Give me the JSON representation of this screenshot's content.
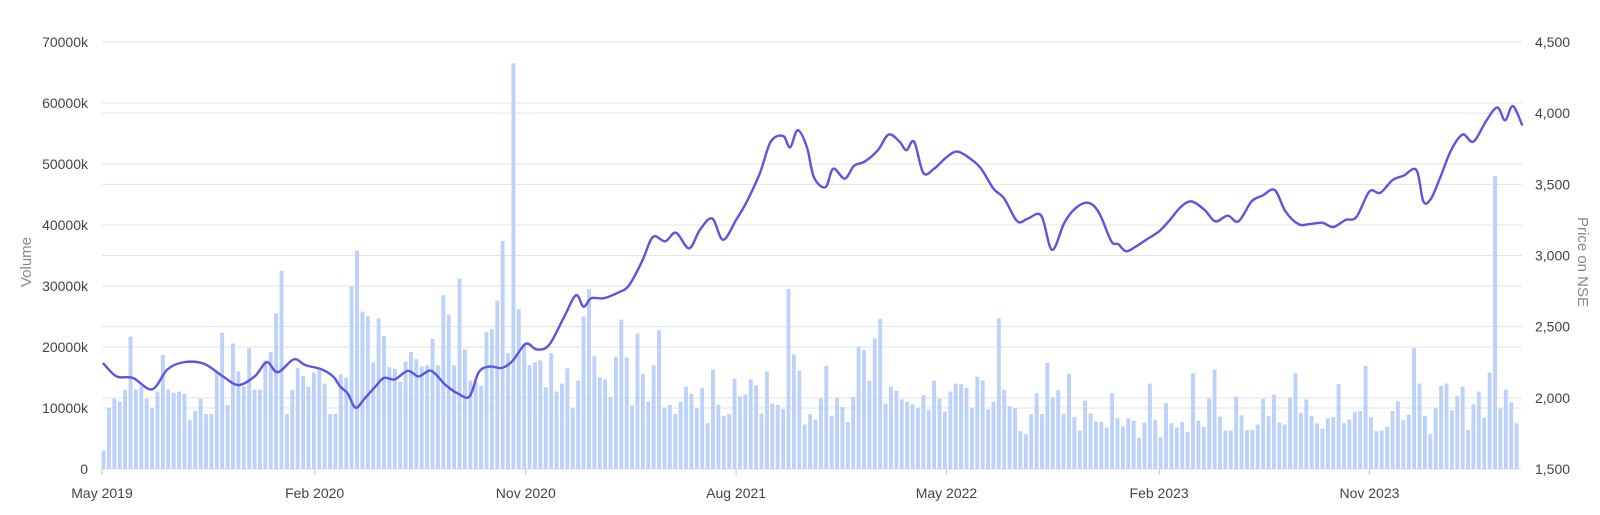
{
  "chart_data": {
    "type": "bar+line",
    "title": "",
    "ylabel_left": "Volume",
    "ylabel_right": "Price on NSE",
    "ylim_left": [
      0,
      70000
    ],
    "ylim_right": [
      1500,
      4500
    ],
    "left_ticks": [
      {
        "value": 0,
        "label": "0"
      },
      {
        "value": 10000,
        "label": "10000k"
      },
      {
        "value": 20000,
        "label": "20000k"
      },
      {
        "value": 30000,
        "label": "30000k"
      },
      {
        "value": 40000,
        "label": "40000k"
      },
      {
        "value": 50000,
        "label": "50000k"
      },
      {
        "value": 60000,
        "label": "60000k"
      },
      {
        "value": 70000,
        "label": "70000k"
      }
    ],
    "right_ticks": [
      {
        "value": 1500,
        "label": "1,500"
      },
      {
        "value": 2000,
        "label": "2,000"
      },
      {
        "value": 2500,
        "label": "2,500"
      },
      {
        "value": 3000,
        "label": "3,000"
      },
      {
        "value": 3500,
        "label": "3,500"
      },
      {
        "value": 4000,
        "label": "4,000"
      },
      {
        "value": 4500,
        "label": "4,500"
      }
    ],
    "x_ticks": [
      {
        "date": "2019-05-01",
        "label": "May 2019"
      },
      {
        "date": "2020-02-01",
        "label": "Feb 2020"
      },
      {
        "date": "2020-11-01",
        "label": "Nov 2020"
      },
      {
        "date": "2021-08-01",
        "label": "Aug 2021"
      },
      {
        "date": "2022-05-01",
        "label": "May 2022"
      },
      {
        "date": "2023-02-01",
        "label": "Feb 2023"
      },
      {
        "date": "2023-11-01",
        "label": "Nov 2023"
      }
    ],
    "x_range": [
      "2019-05-01",
      "2024-05-17"
    ],
    "grid": true,
    "volume_series": {
      "name": "Volume",
      "unit": "thousands",
      "color": "#bcd2fb",
      "start_date": "2019-05-03",
      "step_days": 7,
      "values": [
        3000,
        10000,
        11500,
        11000,
        13000,
        21700,
        13000,
        13500,
        11500,
        10000,
        12700,
        18700,
        13000,
        12500,
        12700,
        12300,
        8000,
        9500,
        11500,
        9000,
        9000,
        16000,
        22300,
        10500,
        20600,
        16000,
        13500,
        19800,
        13000,
        13000,
        17800,
        19200,
        25500,
        32500,
        9000,
        13000,
        16600,
        15200,
        13500,
        15800,
        16200,
        14000,
        9000,
        9000,
        15500,
        15000,
        29900,
        35800,
        25800,
        25000,
        17500,
        24700,
        21800,
        16700,
        16400,
        14300,
        17600,
        19200,
        18000,
        16800,
        17000,
        21300,
        17000,
        28500,
        25300,
        17000,
        31200,
        19600,
        14500,
        14300,
        13600,
        22500,
        22900,
        27600,
        37400,
        19000,
        66500,
        26200,
        20500,
        17000,
        17500,
        17800,
        13400,
        19000,
        12700,
        14000,
        16500,
        10000,
        14500,
        25000,
        29500,
        18500,
        15000,
        14700,
        11800,
        18400,
        24500,
        18300,
        10400,
        22200,
        15600,
        11000,
        17000,
        22800,
        10000,
        10500,
        9000,
        11000,
        13500,
        12300,
        10000,
        13300,
        7500,
        16300,
        10500,
        8700,
        9000,
        14800,
        11900,
        12200,
        14700,
        13700,
        9100,
        16000,
        10700,
        10500,
        9800,
        29500,
        18800,
        16100,
        7300,
        9000,
        8100,
        11600,
        16900,
        8700,
        11700,
        10200,
        7700,
        11800,
        20100,
        19500,
        14500,
        21400,
        24600,
        10700,
        13500,
        12800,
        11400,
        11000,
        10600,
        10000,
        12100,
        9700,
        14500,
        11500,
        9400,
        12700,
        14000,
        13900,
        13300,
        10000,
        15100,
        14500,
        9800,
        11000,
        24700,
        13000,
        10300,
        10000,
        6200,
        5700,
        9000,
        12400,
        9000,
        17400,
        11800,
        12900,
        9000,
        15600,
        8500,
        6300,
        11200,
        9100,
        7800,
        7700,
        6800,
        12400,
        8300,
        7000,
        8300,
        7900,
        5100,
        7600,
        14000,
        8100,
        5200,
        10800,
        7500,
        6800,
        7700,
        6100,
        15700,
        7900,
        6900,
        11600,
        16300,
        8600,
        6300,
        6300,
        11900,
        8800,
        6400,
        6400,
        7300,
        11500,
        8700,
        12200,
        7600,
        7300,
        11700,
        15700,
        9200,
        11400,
        8700,
        7500,
        6600,
        8300,
        8500,
        13900,
        7500,
        8100,
        9400,
        9500,
        16900,
        8500,
        6200,
        6300,
        6900,
        9500,
        11100,
        8000,
        8900,
        19800,
        14000,
        8700,
        5700,
        10000,
        13600,
        14000,
        9600,
        12000,
        13500,
        6400,
        10600,
        12700,
        8400,
        15800,
        48000,
        9900,
        13000,
        10900,
        7500
      ]
    },
    "price_series": {
      "name": "Price on NSE",
      "color": "#5b55e0",
      "points": [
        [
          "2019-05-03",
          2240
        ],
        [
          "2019-05-20",
          2150
        ],
        [
          "2019-06-10",
          2140
        ],
        [
          "2019-07-05",
          2060
        ],
        [
          "2019-07-25",
          2200
        ],
        [
          "2019-08-15",
          2250
        ],
        [
          "2019-09-10",
          2240
        ],
        [
          "2019-10-05",
          2150
        ],
        [
          "2019-10-25",
          2090
        ],
        [
          "2019-11-15",
          2150
        ],
        [
          "2019-12-01",
          2250
        ],
        [
          "2019-12-15",
          2180
        ],
        [
          "2020-01-05",
          2270
        ],
        [
          "2020-01-20",
          2230
        ],
        [
          "2020-02-10",
          2200
        ],
        [
          "2020-02-25",
          2150
        ],
        [
          "2020-03-05",
          2080
        ],
        [
          "2020-03-15",
          2030
        ],
        [
          "2020-03-25",
          1930
        ],
        [
          "2020-04-05",
          1990
        ],
        [
          "2020-04-20",
          2080
        ],
        [
          "2020-05-01",
          2140
        ],
        [
          "2020-05-15",
          2130
        ],
        [
          "2020-06-01",
          2190
        ],
        [
          "2020-06-15",
          2150
        ],
        [
          "2020-07-01",
          2190
        ],
        [
          "2020-07-20",
          2090
        ],
        [
          "2020-08-05",
          2030
        ],
        [
          "2020-08-20",
          2010
        ],
        [
          "2020-09-01",
          2180
        ],
        [
          "2020-09-15",
          2220
        ],
        [
          "2020-10-01",
          2210
        ],
        [
          "2020-10-15",
          2260
        ],
        [
          "2020-11-01",
          2380
        ],
        [
          "2020-11-15",
          2340
        ],
        [
          "2020-12-01",
          2370
        ],
        [
          "2020-12-20",
          2560
        ],
        [
          "2021-01-05",
          2720
        ],
        [
          "2021-01-15",
          2640
        ],
        [
          "2021-01-25",
          2700
        ],
        [
          "2021-02-10",
          2700
        ],
        [
          "2021-03-01",
          2740
        ],
        [
          "2021-03-15",
          2790
        ],
        [
          "2021-04-01",
          2960
        ],
        [
          "2021-04-15",
          3130
        ],
        [
          "2021-05-01",
          3100
        ],
        [
          "2021-05-15",
          3160
        ],
        [
          "2021-06-01",
          3050
        ],
        [
          "2021-06-15",
          3180
        ],
        [
          "2021-07-01",
          3260
        ],
        [
          "2021-07-15",
          3110
        ],
        [
          "2021-08-01",
          3250
        ],
        [
          "2021-08-15",
          3380
        ],
        [
          "2021-09-01",
          3580
        ],
        [
          "2021-09-15",
          3800
        ],
        [
          "2021-10-01",
          3840
        ],
        [
          "2021-10-10",
          3760
        ],
        [
          "2021-10-20",
          3880
        ],
        [
          "2021-11-01",
          3760
        ],
        [
          "2021-11-10",
          3550
        ],
        [
          "2021-11-25",
          3480
        ],
        [
          "2021-12-05",
          3610
        ],
        [
          "2021-12-20",
          3540
        ],
        [
          "2022-01-01",
          3630
        ],
        [
          "2022-01-15",
          3660
        ],
        [
          "2022-02-01",
          3740
        ],
        [
          "2022-02-15",
          3850
        ],
        [
          "2022-03-01",
          3800
        ],
        [
          "2022-03-10",
          3740
        ],
        [
          "2022-03-20",
          3800
        ],
        [
          "2022-04-01",
          3580
        ],
        [
          "2022-04-15",
          3610
        ],
        [
          "2022-05-01",
          3690
        ],
        [
          "2022-05-15",
          3730
        ],
        [
          "2022-06-01",
          3680
        ],
        [
          "2022-06-15",
          3610
        ],
        [
          "2022-07-01",
          3470
        ],
        [
          "2022-07-15",
          3400
        ],
        [
          "2022-08-01",
          3240
        ],
        [
          "2022-08-15",
          3260
        ],
        [
          "2022-09-01",
          3280
        ],
        [
          "2022-09-15",
          3040
        ],
        [
          "2022-10-01",
          3230
        ],
        [
          "2022-10-15",
          3330
        ],
        [
          "2022-11-01",
          3370
        ],
        [
          "2022-11-15",
          3300
        ],
        [
          "2022-12-01",
          3100
        ],
        [
          "2022-12-10",
          3080
        ],
        [
          "2022-12-20",
          3030
        ],
        [
          "2023-01-01",
          3060
        ],
        [
          "2023-01-15",
          3110
        ],
        [
          "2023-02-01",
          3170
        ],
        [
          "2023-02-15",
          3250
        ],
        [
          "2023-03-01",
          3340
        ],
        [
          "2023-03-15",
          3380
        ],
        [
          "2023-04-01",
          3320
        ],
        [
          "2023-04-15",
          3240
        ],
        [
          "2023-05-01",
          3280
        ],
        [
          "2023-05-15",
          3240
        ],
        [
          "2023-06-01",
          3380
        ],
        [
          "2023-06-15",
          3420
        ],
        [
          "2023-07-01",
          3460
        ],
        [
          "2023-07-15",
          3310
        ],
        [
          "2023-08-01",
          3220
        ],
        [
          "2023-08-15",
          3220
        ],
        [
          "2023-09-01",
          3230
        ],
        [
          "2023-09-15",
          3200
        ],
        [
          "2023-10-01",
          3250
        ],
        [
          "2023-10-15",
          3270
        ],
        [
          "2023-11-01",
          3450
        ],
        [
          "2023-11-15",
          3440
        ],
        [
          "2023-12-01",
          3530
        ],
        [
          "2023-12-15",
          3560
        ],
        [
          "2024-01-01",
          3600
        ],
        [
          "2024-01-10",
          3380
        ],
        [
          "2024-01-20",
          3400
        ],
        [
          "2024-02-01",
          3550
        ],
        [
          "2024-02-15",
          3740
        ],
        [
          "2024-03-01",
          3850
        ],
        [
          "2024-03-15",
          3800
        ],
        [
          "2024-04-01",
          3950
        ],
        [
          "2024-04-15",
          4040
        ],
        [
          "2024-04-25",
          3950
        ],
        [
          "2024-05-05",
          4050
        ],
        [
          "2024-05-17",
          3920
        ]
      ]
    }
  }
}
